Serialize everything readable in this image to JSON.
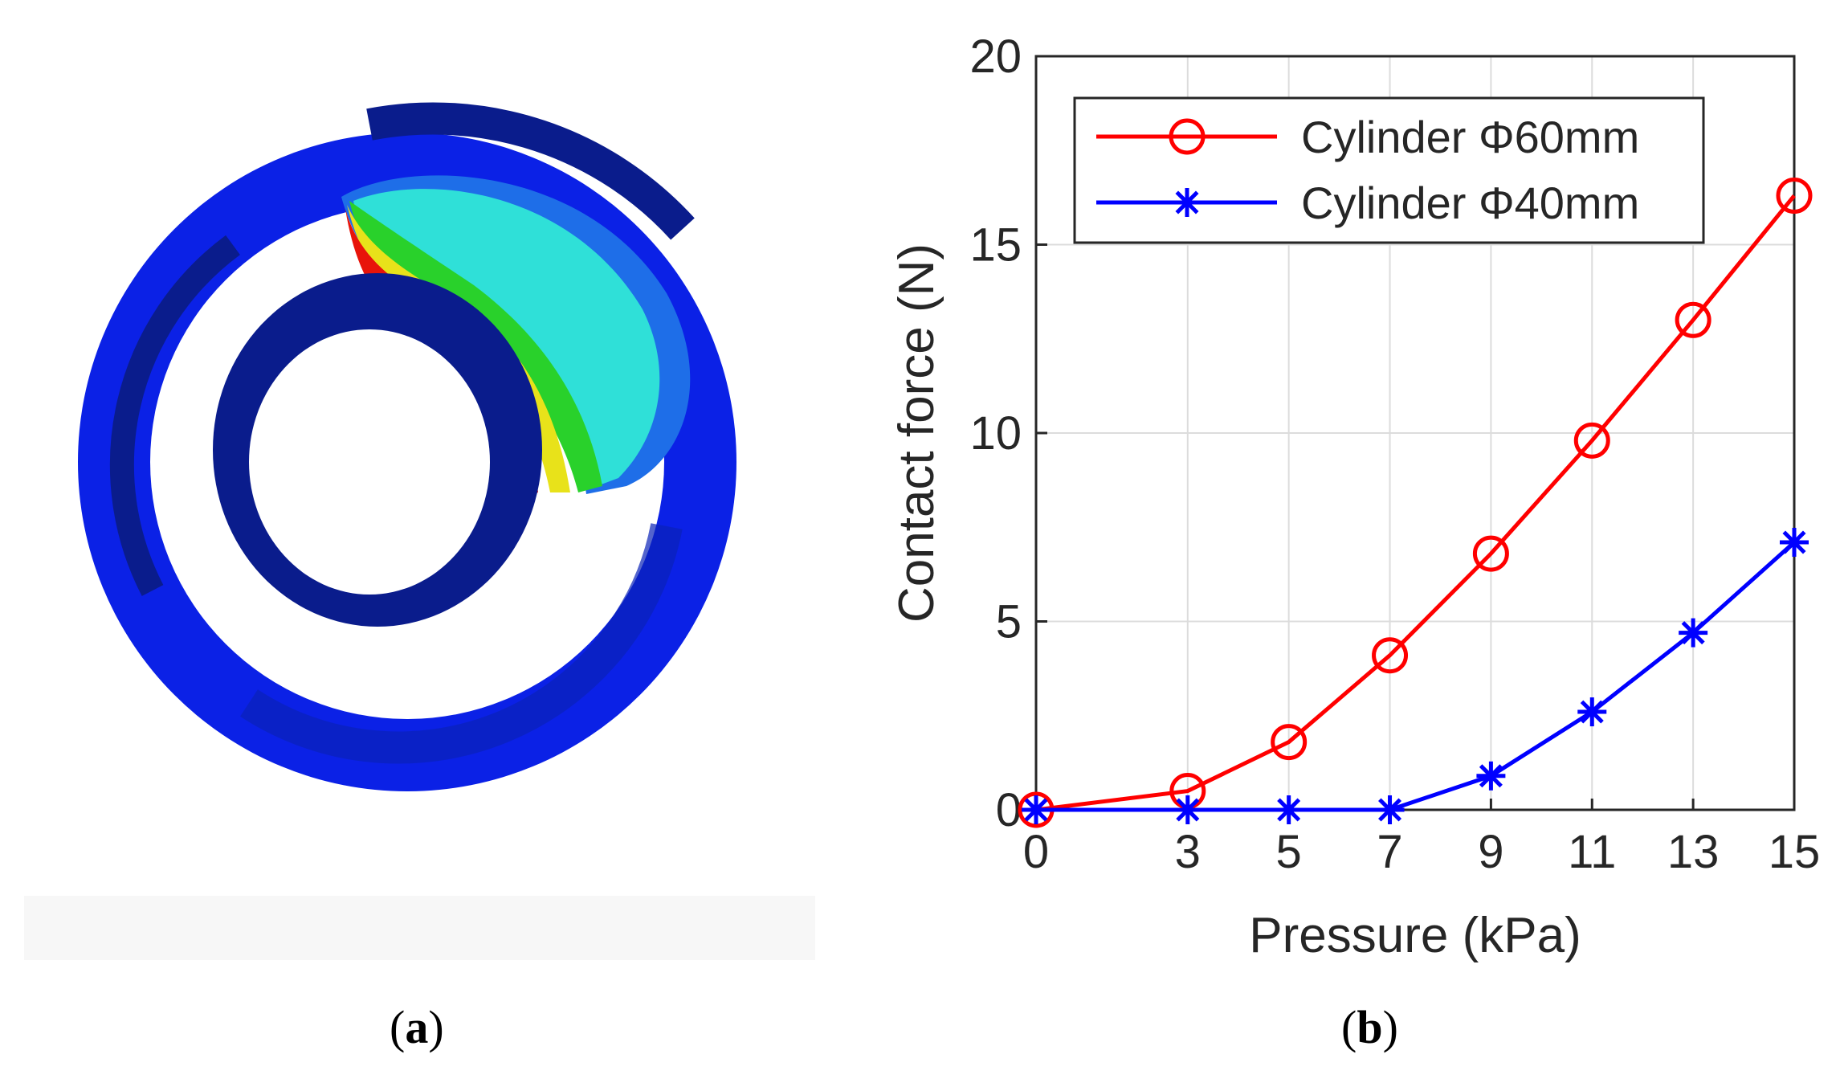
{
  "panel_a": {
    "caption_open": "(",
    "caption_letter": "a",
    "caption_close": ")",
    "image_desc": "fea-contact-simulation",
    "colors": {
      "base_blue": "#0b21e6",
      "dark_blue": "#0a1c8c",
      "cyan": "#2fe0d8",
      "green": "#29d12b",
      "yellow": "#e8e21a",
      "red": "#e8140a"
    }
  },
  "panel_b": {
    "caption_open": "(",
    "caption_letter": "b",
    "caption_close": ")"
  },
  "chart_data": {
    "type": "line",
    "title": "",
    "xlabel": "Pressure (kPa)",
    "ylabel": "Contact force (N)",
    "x": [
      0,
      3,
      5,
      7,
      9,
      11,
      13,
      15
    ],
    "xticks": [
      "0",
      "3",
      "5",
      "7",
      "9",
      "11",
      "13",
      "15"
    ],
    "yticks": [
      "0",
      "5",
      "10",
      "15",
      "20"
    ],
    "xlim": [
      0,
      15
    ],
    "ylim": [
      0,
      20
    ],
    "grid": true,
    "legend_position": "top-left",
    "series": [
      {
        "name": "Cylinder Φ60mm",
        "color": "#ff0000",
        "marker": "circle",
        "values": [
          0,
          0.5,
          1.8,
          4.1,
          6.8,
          9.8,
          13.0,
          16.3
        ]
      },
      {
        "name": "Cylinder Φ40mm",
        "color": "#0000ff",
        "marker": "asterisk",
        "values": [
          0,
          0,
          0,
          0,
          0.9,
          2.6,
          4.7,
          7.1
        ]
      }
    ]
  }
}
